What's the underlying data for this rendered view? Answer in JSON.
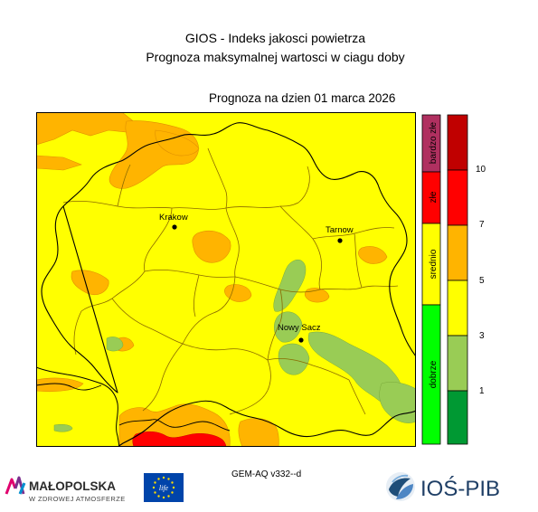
{
  "header": {
    "title_line1": "GIOS - Indeks jakosci powietrza",
    "title_line2": "Prognoza maksymalnej wartosci w ciagu doby",
    "date_label": "Prognoza na dzien  01 marca 2026"
  },
  "map": {
    "cities": [
      {
        "name": "Krakow"
      },
      {
        "name": "Tarnow"
      },
      {
        "name": "Nowy Sacz"
      }
    ],
    "colors": {
      "background_yellow": "#ffff00",
      "orange": "#ffb400",
      "red": "#ff0000",
      "lightgreen": "#99cc55",
      "borders": "#8a6a00",
      "outline": "#000000"
    }
  },
  "legend": {
    "categories": [
      {
        "label": "bardzo złe",
        "color": "#b03060"
      },
      {
        "label": "złe",
        "color": "#ff0000"
      },
      {
        "label": "srednio",
        "color": "#ffff00"
      },
      {
        "label": "dobrze",
        "color": "#00ff00"
      }
    ],
    "scale_colors": [
      "#009933",
      "#99cc55",
      "#ffff00",
      "#ffb400",
      "#ff0000",
      "#c00000"
    ],
    "scale_labels": [
      "1",
      "3",
      "5",
      "7",
      "10"
    ]
  },
  "footer": {
    "model": "GEM-AQ v332--d",
    "malopolska_name": "MAŁOPOLSKA",
    "malopolska_tagline": "W ZDROWEJ ATMOSFERZE",
    "ios_name": "IOŚ-PIB",
    "eu_logo_text": "life"
  }
}
